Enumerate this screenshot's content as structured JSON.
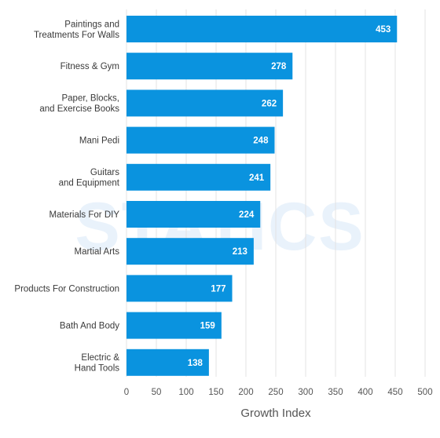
{
  "chart_data": {
    "type": "bar",
    "orientation": "horizontal",
    "categories": [
      [
        "Paintings and",
        "Treatments For Walls"
      ],
      [
        "Fitness & Gym"
      ],
      [
        "Paper, Blocks,",
        "and Exercise Books"
      ],
      [
        "Mani Pedi"
      ],
      [
        "Guitars",
        "and Equipment"
      ],
      [
        "Materials For DIY"
      ],
      [
        "Martial Arts"
      ],
      [
        "Products For Construction"
      ],
      [
        "Bath And Body"
      ],
      [
        "Electric &",
        "Hand Tools"
      ]
    ],
    "values": [
      453,
      278,
      262,
      248,
      241,
      224,
      213,
      177,
      159,
      138
    ],
    "xlabel": "Growth Index",
    "ylabel": "",
    "xlim": [
      0,
      500
    ],
    "xticks": [
      0,
      50,
      100,
      150,
      200,
      250,
      300,
      350,
      400,
      450,
      500
    ],
    "grid": "vertical",
    "data_labels": "inside-end",
    "colors": {
      "bar": "#0a93df",
      "value_text": "#ffffff",
      "grid": "#e3e3e3",
      "watermark": "#e9f2fb"
    }
  }
}
